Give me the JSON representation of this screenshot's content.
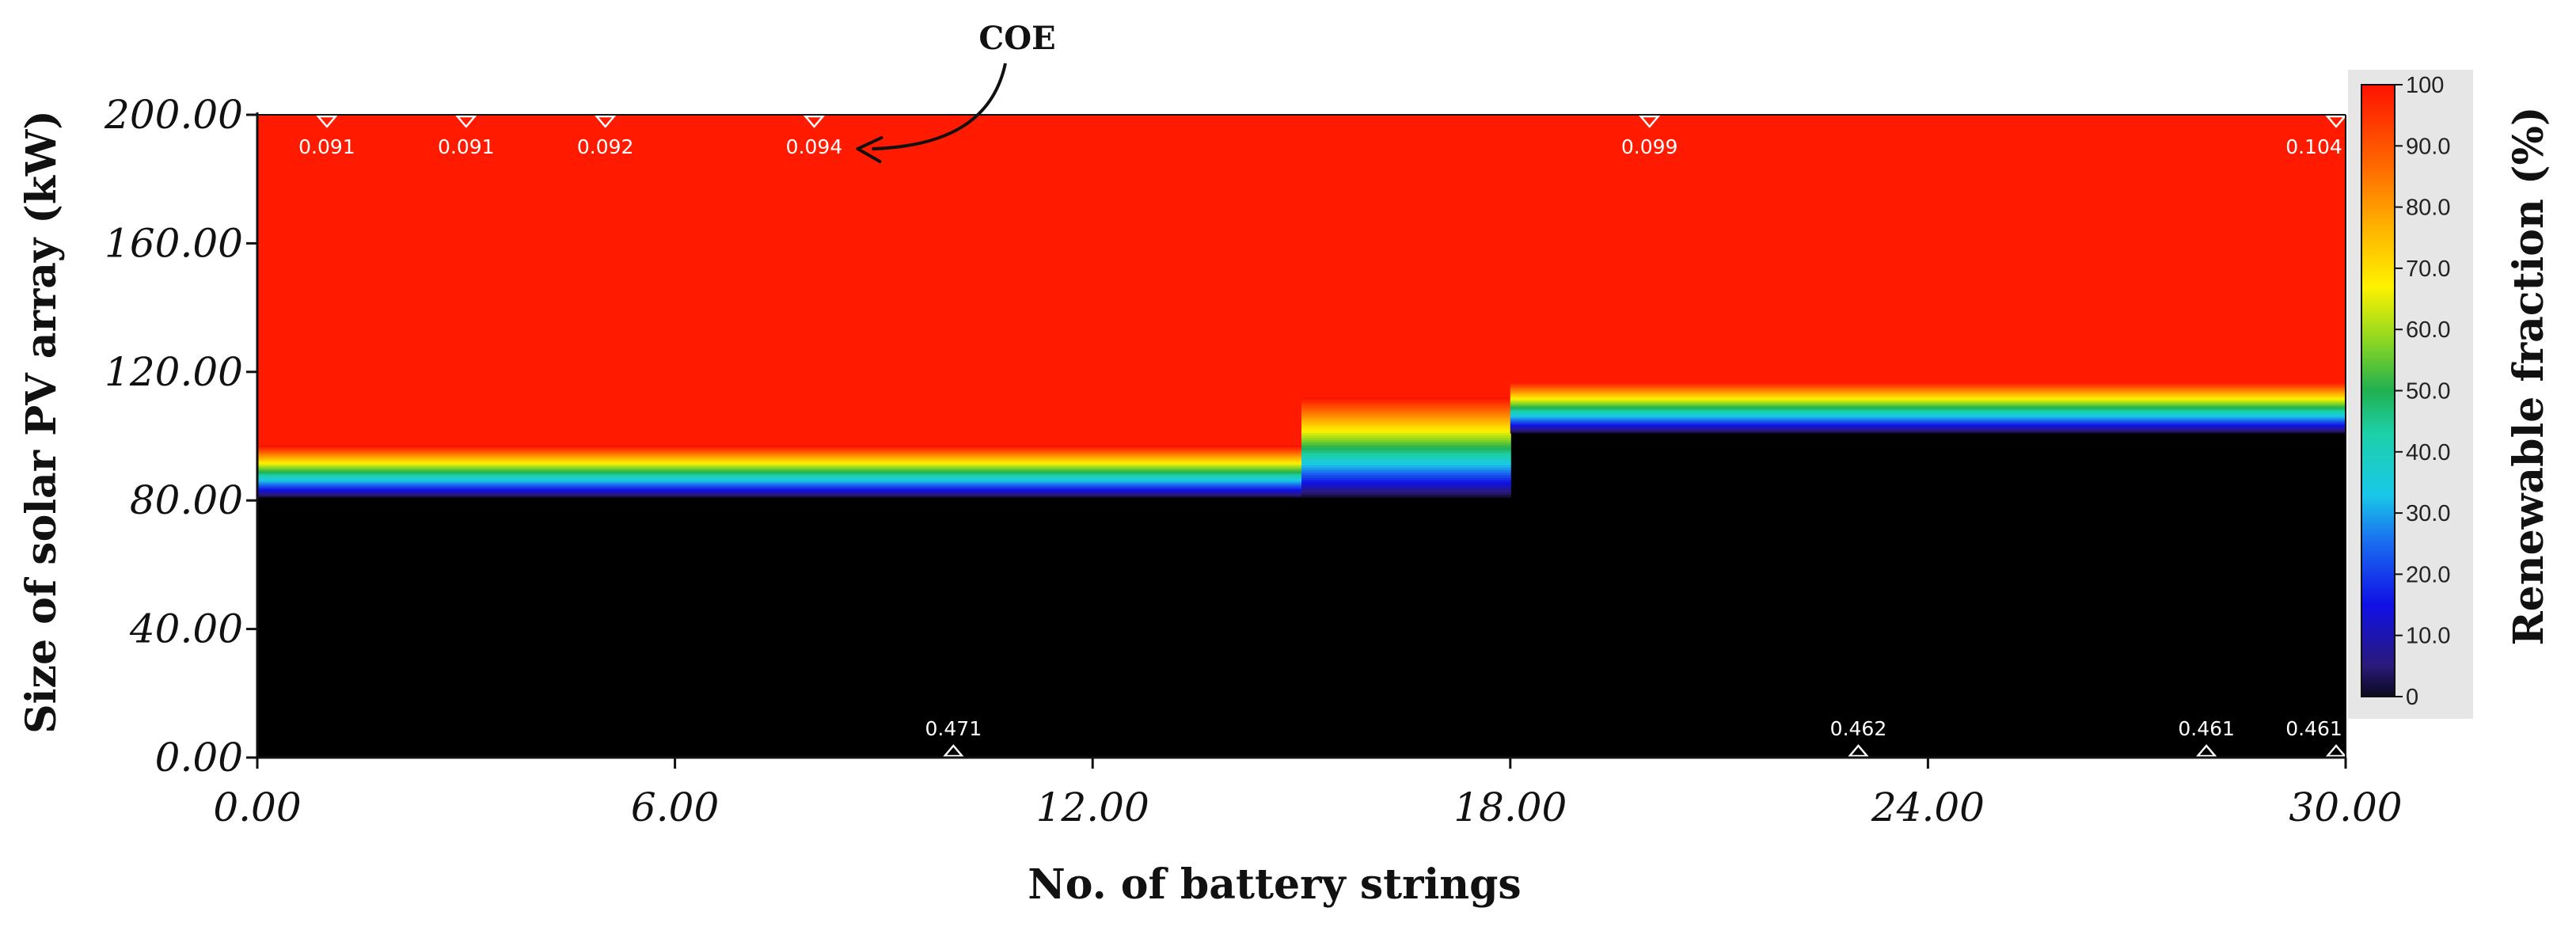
{
  "chart_data": {
    "type": "heatmap",
    "title": "",
    "xlabel": "No. of battery strings",
    "ylabel": "Size of solar PV array (kW)",
    "xlim": [
      0,
      30
    ],
    "ylim": [
      0,
      200
    ],
    "x_ticks": [
      "0.00",
      "6.00",
      "12.00",
      "18.00",
      "24.00",
      "30.00"
    ],
    "y_ticks": [
      "0.00",
      "40.00",
      "80.00",
      "120.00",
      "160.00",
      "200.00"
    ],
    "surface": {
      "variable": "Renewable fraction (%)",
      "description_regions": [
        {
          "x_range": [
            0,
            15
          ],
          "pv_kw_zero_renewable_below": 81,
          "pv_kw_full_renewable_above": 97
        },
        {
          "x_range": [
            15,
            18
          ],
          "pv_kw_zero_renewable_below": 81,
          "pv_kw_full_renewable_above": 112
        },
        {
          "x_range": [
            18,
            30
          ],
          "pv_kw_zero_renewable_below": 101,
          "pv_kw_full_renewable_above": 117
        }
      ]
    },
    "colorbar": {
      "title": "Renewable fraction (%)",
      "min": 0,
      "max": 100,
      "tick_labels": [
        "100",
        "90.0",
        "80.0",
        "70.0",
        "60.0",
        "50.0",
        "40.0",
        "30.0",
        "20.0",
        "10.0",
        "0"
      ],
      "tick_values": [
        100,
        90,
        80,
        70,
        60,
        50,
        40,
        30,
        20,
        10,
        0
      ]
    },
    "coe_overlay_label": "COE",
    "coe_top_markers": [
      {
        "x": 1,
        "y": 200,
        "label": "0.091"
      },
      {
        "x": 3,
        "y": 200,
        "label": "0.091"
      },
      {
        "x": 5,
        "y": 200,
        "label": "0.092"
      },
      {
        "x": 8,
        "y": 200,
        "label": "0.094"
      },
      {
        "x": 20,
        "y": 200,
        "label": "0.099"
      },
      {
        "x": 30,
        "y": 200,
        "label": "0.104"
      }
    ],
    "coe_bottom_markers": [
      {
        "x": 10,
        "y": 0,
        "label": "0.471"
      },
      {
        "x": 23,
        "y": 0,
        "label": "0.462"
      },
      {
        "x": 28,
        "y": 0,
        "label": "0.461"
      },
      {
        "x": 30,
        "y": 0,
        "label": "0.461"
      }
    ],
    "colors": {
      "no_renewable": "#000000",
      "full_renewable": "#ff1a00"
    }
  }
}
